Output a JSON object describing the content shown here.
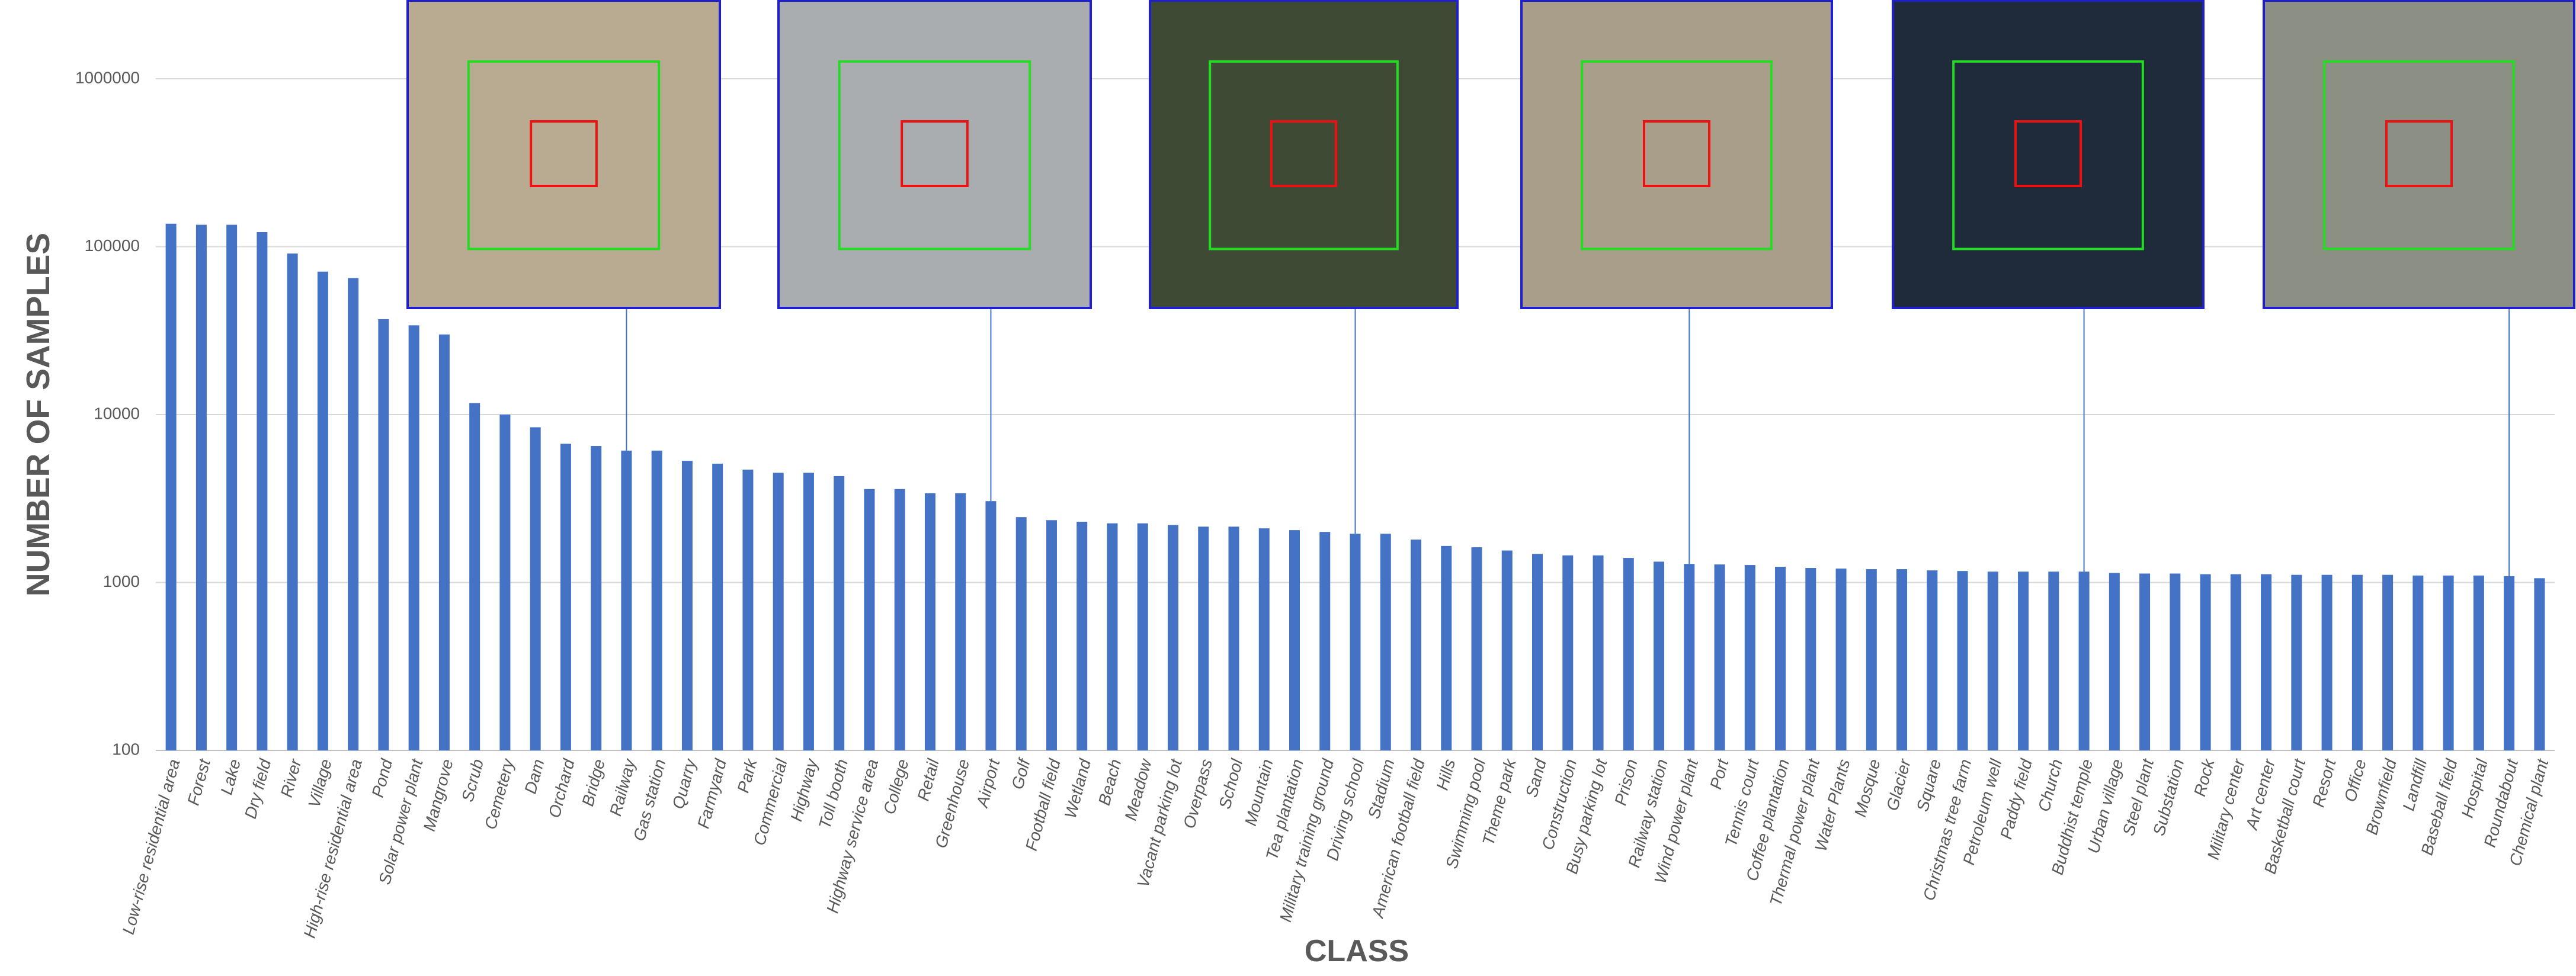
{
  "chart_data": {
    "type": "bar",
    "x_label": "CLASS",
    "y_label": "NUMBER OF SAMPLES",
    "log_scale": true,
    "grid": true,
    "color": "#4472c4",
    "ylim": [
      100,
      1000000
    ],
    "yticks": [
      100,
      1000,
      10000,
      100000,
      1000000
    ],
    "categories": [
      "Low-rise residential area",
      "Forest",
      "Lake",
      "Dry field",
      "River",
      "Village",
      "High-rise residential area",
      "Pond",
      "Solar power plant",
      "Mangrove",
      "Scrub",
      "Cemetery",
      "Dam",
      "Orchard",
      "Bridge",
      "Railway",
      "Gas station",
      "Quarry",
      "Farmyard",
      "Park",
      "Commercial",
      "Highway",
      "Toll booth",
      "Highway service area",
      "College",
      "Retail",
      "Greenhouse",
      "Airport",
      "Golf",
      "Football field",
      "Wetland",
      "Beach",
      "Meadow",
      "Vacant parking lot",
      "Overpass",
      "School",
      "Mountain",
      "Tea plantation",
      "Military training ground",
      "Driving school",
      "Stadium",
      "American football field",
      "Hills",
      "Swimming pool",
      "Theme park",
      "Sand",
      "Construction",
      "Busy parking lot",
      "Prison",
      "Railway station",
      "Wind power plant",
      "Port",
      "Tennis court",
      "Coffee plantation",
      "Thermal power plant",
      "Water Plants",
      "Mosque",
      "Glacier",
      "Square",
      "Christmas tree farm",
      "Petroleum well",
      "Paddy field",
      "Church",
      "Buddhist temple",
      "Urban village",
      "Steel plant",
      "Substation",
      "Rock",
      "Military center",
      "Art center",
      "Basketball court",
      "Resort",
      "Office",
      "Brownfield",
      "Landfill",
      "Baseball field",
      "Hospital",
      "Roundabout",
      "Chemical plant"
    ],
    "values": [
      137000,
      135000,
      135000,
      122000,
      91000,
      71000,
      65000,
      37000,
      34000,
      30000,
      11700,
      10000,
      8400,
      6700,
      6500,
      6100,
      6100,
      5300,
      5100,
      4700,
      4500,
      4500,
      4300,
      3600,
      3600,
      3400,
      3400,
      3050,
      2450,
      2350,
      2300,
      2250,
      2250,
      2200,
      2150,
      2150,
      2100,
      2050,
      2000,
      1950,
      1950,
      1800,
      1650,
      1620,
      1550,
      1480,
      1450,
      1450,
      1400,
      1330,
      1290,
      1280,
      1270,
      1240,
      1220,
      1210,
      1200,
      1200,
      1180,
      1170,
      1160,
      1160,
      1160,
      1160,
      1140,
      1130,
      1130,
      1120,
      1120,
      1120,
      1110,
      1110,
      1110,
      1110,
      1100,
      1100,
      1100,
      1090,
      1060
    ]
  }
}
